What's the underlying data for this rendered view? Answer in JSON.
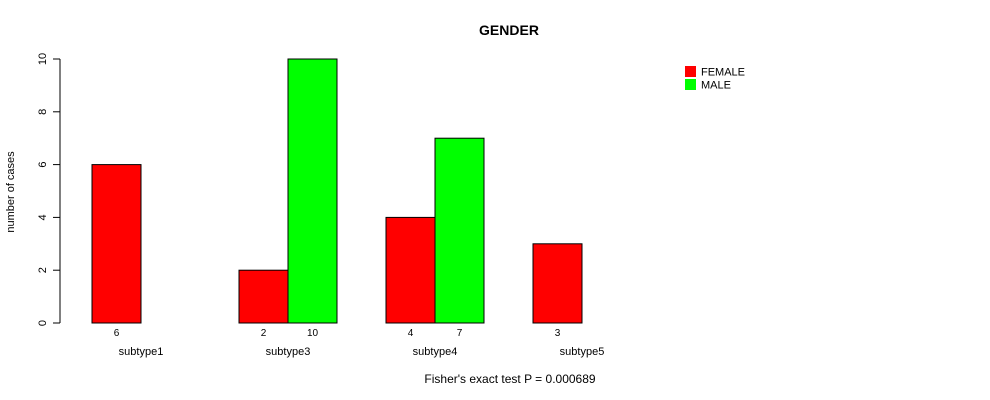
{
  "chart_data": {
    "type": "bar",
    "title": "GENDER",
    "ylabel": "number of cases",
    "xlabel": "",
    "footnote": "Fisher's exact test P = 0.000689",
    "categories": [
      "subtype1",
      "subtype3",
      "subtype4",
      "subtype5"
    ],
    "series": [
      {
        "name": "FEMALE",
        "color": "#ff0000",
        "values": [
          6,
          2,
          4,
          3
        ]
      },
      {
        "name": "MALE",
        "color": "#00ff00",
        "values": [
          0,
          10,
          7,
          0
        ]
      }
    ],
    "count_labels": [
      [
        "6",
        ""
      ],
      [
        "2",
        "10"
      ],
      [
        "4",
        "7"
      ],
      [
        "3",
        ""
      ]
    ],
    "ylim": [
      0,
      10
    ],
    "yticks": [
      0,
      2,
      4,
      6,
      8,
      10
    ],
    "grid": false,
    "legend_position": "top-right"
  }
}
